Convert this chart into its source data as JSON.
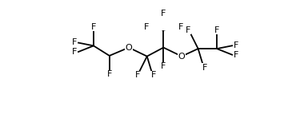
{
  "bg": "#ffffff",
  "lc": "#000000",
  "lw": 1.3,
  "fs": 8.0,
  "figsize": [
    3.6,
    1.58
  ],
  "dpi": 100,
  "xlim": [
    -0.1,
    3.7
  ],
  "ylim": [
    -0.05,
    1.1
  ]
}
